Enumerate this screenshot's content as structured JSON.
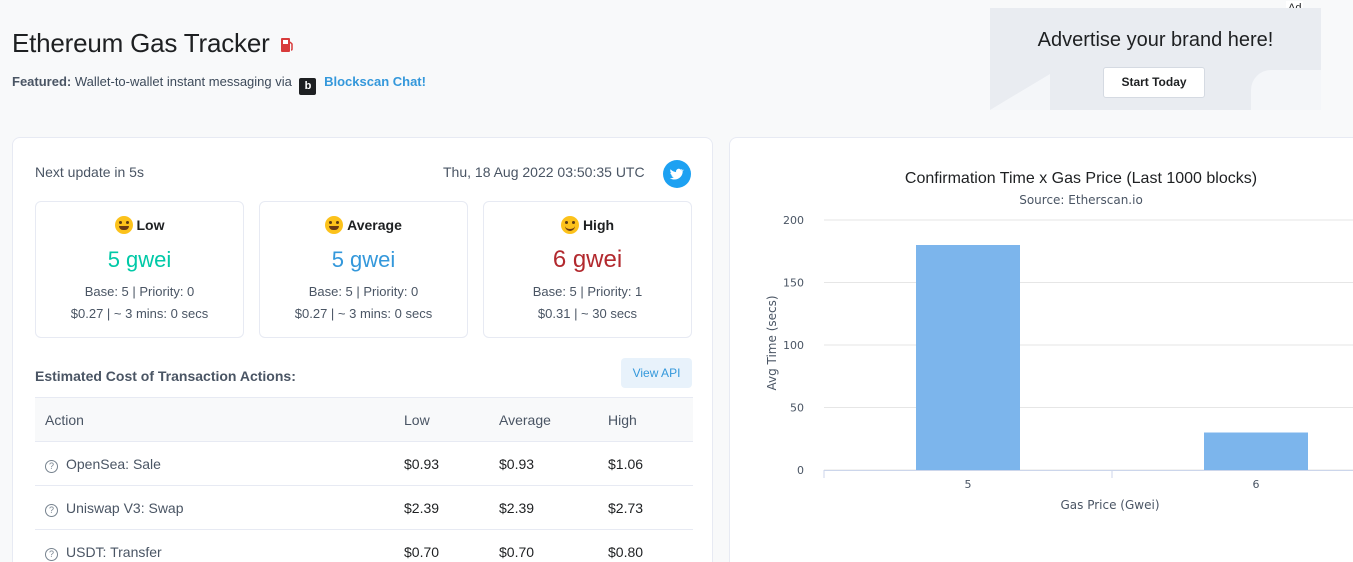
{
  "header": {
    "title": "Ethereum Gas Tracker",
    "featured_label": "Featured:",
    "featured_text": "Wallet-to-wallet instant messaging via",
    "featured_logo": "b",
    "featured_link": "Blockscan Chat!"
  },
  "ad": {
    "tag": "Ad",
    "headline": "Advertise your brand here!",
    "button": "Start Today"
  },
  "gas": {
    "next_update": "Next update in 5s",
    "timestamp": "Thu, 18 Aug 2022 03:50:35 UTC",
    "tiers": [
      {
        "label": "Low",
        "value": "5 gwei",
        "base": "Base: 5 | Priority: 0",
        "cost": "$0.27 | ~ 3 mins: 0 secs",
        "color": "#00c9a7"
      },
      {
        "label": "Average",
        "value": "5 gwei",
        "base": "Base: 5 | Priority: 0",
        "cost": "$0.27 | ~ 3 mins: 0 secs",
        "color": "#3498db"
      },
      {
        "label": "High",
        "value": "6 gwei",
        "base": "Base: 5 | Priority: 1",
        "cost": "$0.31 | ~ 30 secs",
        "color": "#b2292e"
      }
    ]
  },
  "estimate": {
    "title": "Estimated Cost of Transaction Actions:",
    "view_api": "View API",
    "columns": [
      "Action",
      "Low",
      "Average",
      "High"
    ],
    "rows": [
      {
        "action": "OpenSea: Sale",
        "low": "$0.93",
        "avg": "$0.93",
        "high": "$1.06"
      },
      {
        "action": "Uniswap V3: Swap",
        "low": "$2.39",
        "avg": "$2.39",
        "high": "$2.73"
      },
      {
        "action": "USDT: Transfer",
        "low": "$0.70",
        "avg": "$0.70",
        "high": "$0.80"
      }
    ]
  },
  "chart_data": {
    "type": "bar",
    "title": "Confirmation Time x Gas Price (Last 1000 blocks)",
    "subtitle": "Source: Etherscan.io",
    "xlabel": "Gas Price (Gwei)",
    "ylabel": "Avg Time (secs)",
    "categories": [
      "5",
      "6"
    ],
    "values": [
      180,
      30
    ],
    "ylim": [
      0,
      200
    ],
    "yticks": [
      0,
      50,
      100,
      150,
      200
    ],
    "bar_color": "#7cb5ec",
    "grid": true
  }
}
